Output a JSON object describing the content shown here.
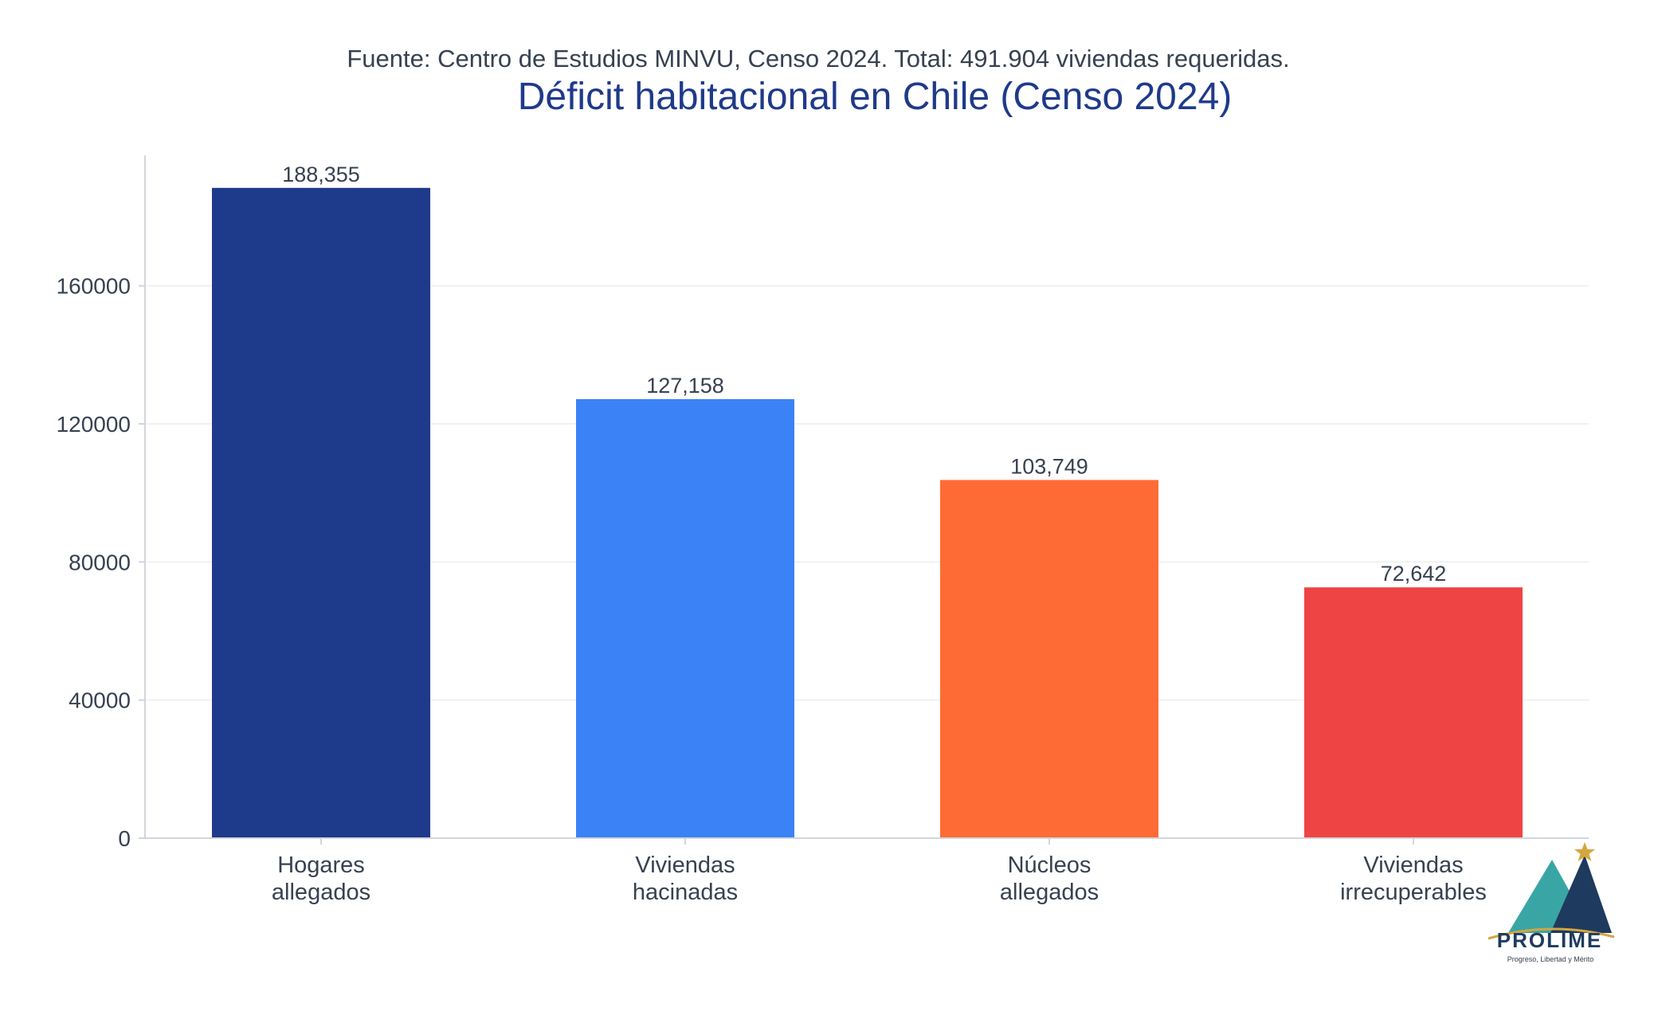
{
  "subtitle": "Fuente: Centro de Estudios MINVU, Censo 2024. Total: 491.904 viviendas requeridas.",
  "colors": {
    "title": "#1e3a8a",
    "text": "#374151",
    "axis": "#d1d5db",
    "grid": "#eeeeee",
    "logo_teal": "#3aa5a5",
    "logo_navy": "#1f3a5f",
    "logo_gold": "#d4a640"
  },
  "logo": {
    "name": "PROLIME",
    "tagline": "Progreso, Libertad y Mérito"
  },
  "chart_data": {
    "type": "bar",
    "title": "Déficit habitacional en Chile (Censo 2024)",
    "xlabel": "",
    "ylabel": "",
    "categories": [
      [
        "Hogares",
        "allegados"
      ],
      [
        "Viviendas",
        "hacinadas"
      ],
      [
        "Núcleos",
        "allegados"
      ],
      [
        "Viviendas",
        "irrecuperables"
      ]
    ],
    "values": [
      188355,
      127158,
      103749,
      72642
    ],
    "value_labels": [
      "188,355",
      "127,158",
      "103,749",
      "72,642"
    ],
    "bar_colors": [
      "#1e3a8a",
      "#3b82f6",
      "#ff6b35",
      "#ef4444"
    ],
    "y_ticks": [
      0,
      40000,
      80000,
      120000,
      160000
    ],
    "ylim": [
      0,
      197773
    ],
    "grid": true,
    "legend": "none"
  }
}
